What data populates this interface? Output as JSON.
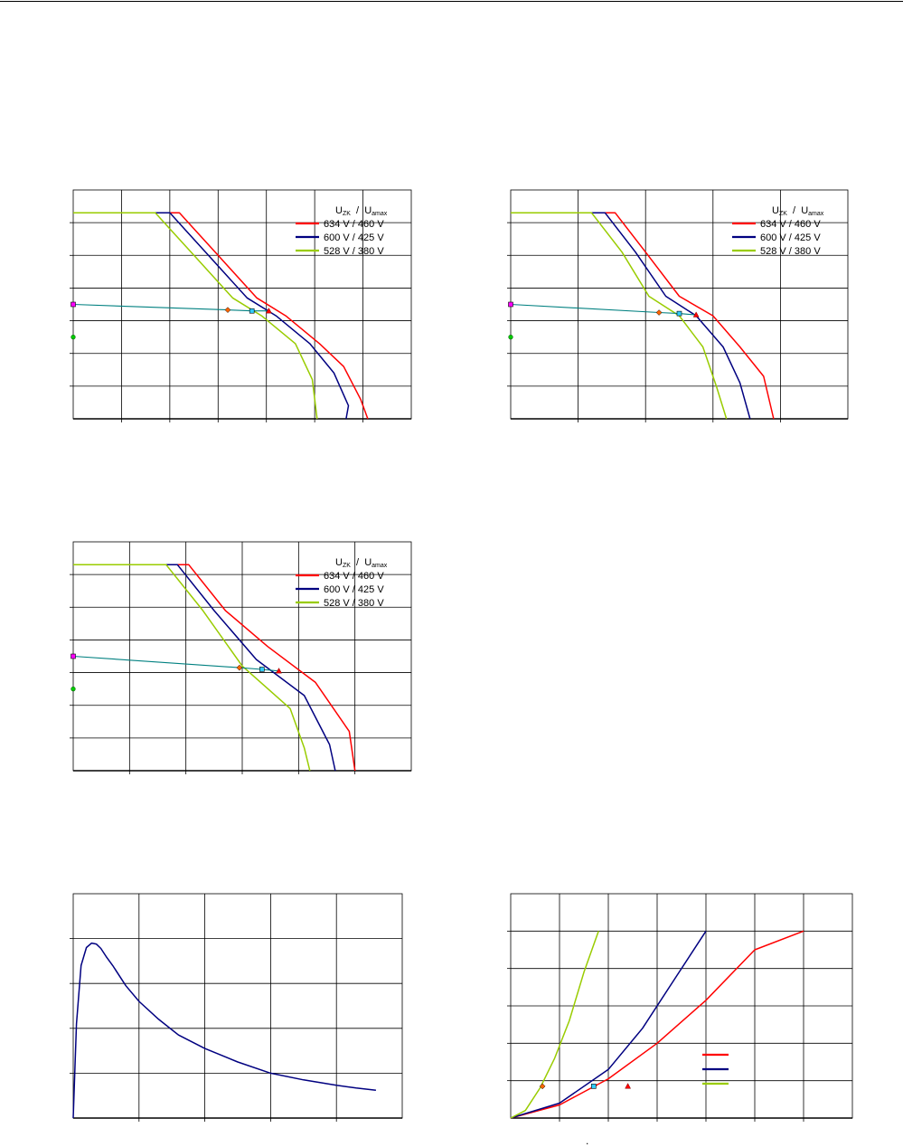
{
  "legend_header": {
    "u_zk": "U",
    "u_zk_sub": "ZK",
    "sep": "/",
    "u_amax": "U",
    "u_amax_sub": "amax"
  },
  "stray_mark": ".",
  "chart_data": [
    {
      "id": "chart-top-left",
      "type": "line",
      "xlim": [
        0,
        7
      ],
      "ylim": [
        0,
        7
      ],
      "x_grid_step": 1,
      "y_grid_step": 1,
      "legend_position": "top-right",
      "grid": true,
      "series": [
        {
          "name": "634 V / 460 V",
          "color": "#ff0000",
          "x": [
            0,
            2.2,
            3.0,
            3.8,
            4.4,
            5.1,
            5.6,
            5.95,
            6.1
          ],
          "y": [
            6.3,
            6.3,
            5.0,
            3.7,
            3.15,
            2.3,
            1.6,
            0.6,
            0
          ]
        },
        {
          "name": "600 V / 425 V",
          "color": "#000080",
          "x": [
            0,
            2.0,
            2.8,
            3.6,
            4.2,
            4.9,
            5.4,
            5.7,
            5.65
          ],
          "y": [
            6.3,
            6.3,
            5.0,
            3.7,
            3.15,
            2.3,
            1.4,
            0.4,
            0
          ]
        },
        {
          "name": "528 V / 380 V",
          "color": "#99cc00",
          "x": [
            0,
            1.7,
            2.5,
            3.3,
            3.9,
            4.6,
            4.95,
            5.05
          ],
          "y": [
            6.3,
            6.3,
            5.0,
            3.7,
            3.15,
            2.3,
            1.2,
            0
          ]
        },
        {
          "name": "",
          "color": "#008080",
          "x": [
            0,
            3.2,
            3.7,
            4.05
          ],
          "y": [
            3.5,
            3.33,
            3.3,
            3.3
          ]
        }
      ],
      "markers": [
        {
          "shape": "square",
          "color": "#ff00ff",
          "x": 0,
          "y": 3.5
        },
        {
          "shape": "circle",
          "color": "#00cc00",
          "x": 0,
          "y": 2.5
        },
        {
          "shape": "diamond",
          "color": "#ff6600",
          "x": 3.2,
          "y": 3.33
        },
        {
          "shape": "square",
          "color": "#33ccff",
          "x": 3.7,
          "y": 3.3
        },
        {
          "shape": "triangle",
          "color": "#ff0000",
          "x": 4.05,
          "y": 3.3
        }
      ]
    },
    {
      "id": "chart-top-right",
      "type": "line",
      "xlim": [
        0,
        5
      ],
      "ylim": [
        0,
        7
      ],
      "x_grid_step": 1,
      "y_grid_step": 1,
      "legend_position": "top-right",
      "grid": true,
      "series": [
        {
          "name": "634 V / 460 V",
          "color": "#ff0000",
          "x": [
            0,
            1.55,
            2.0,
            2.5,
            3.0,
            3.4,
            3.75,
            3.9
          ],
          "y": [
            6.3,
            6.3,
            5.1,
            3.75,
            3.15,
            2.2,
            1.3,
            0
          ]
        },
        {
          "name": "600 V / 425 V",
          "color": "#000080",
          "x": [
            0,
            1.4,
            1.85,
            2.3,
            2.75,
            3.15,
            3.4,
            3.55
          ],
          "y": [
            6.3,
            6.3,
            5.1,
            3.75,
            3.15,
            2.2,
            1.1,
            0
          ]
        },
        {
          "name": "528 V / 380 V",
          "color": "#99cc00",
          "x": [
            0,
            1.2,
            1.65,
            2.05,
            2.5,
            2.85,
            3.05,
            3.2
          ],
          "y": [
            6.3,
            6.3,
            5.1,
            3.75,
            3.15,
            2.2,
            1.0,
            0
          ]
        },
        {
          "name": "",
          "color": "#008080",
          "x": [
            0,
            2.2,
            2.5,
            2.75
          ],
          "y": [
            3.5,
            3.25,
            3.22,
            3.18
          ]
        }
      ],
      "markers": [
        {
          "shape": "square",
          "color": "#ff00ff",
          "x": 0,
          "y": 3.5
        },
        {
          "shape": "circle",
          "color": "#00cc00",
          "x": 0,
          "y": 2.5
        },
        {
          "shape": "diamond",
          "color": "#ff6600",
          "x": 2.2,
          "y": 3.25
        },
        {
          "shape": "square",
          "color": "#33ccff",
          "x": 2.5,
          "y": 3.22
        },
        {
          "shape": "triangle",
          "color": "#ff0000",
          "x": 2.75,
          "y": 3.18
        }
      ]
    },
    {
      "id": "chart-middle-left",
      "type": "line",
      "xlim": [
        0,
        6
      ],
      "ylim": [
        0,
        7
      ],
      "x_grid_step": 1,
      "y_grid_step": 1,
      "legend_position": "top-right",
      "grid": true,
      "series": [
        {
          "name": "634 V / 460 V",
          "color": "#ff0000",
          "x": [
            0,
            2.05,
            2.7,
            3.45,
            4.3,
            4.9,
            5.0
          ],
          "y": [
            6.3,
            6.3,
            4.9,
            3.8,
            2.7,
            1.2,
            0
          ]
        },
        {
          "name": "600 V / 425 V",
          "color": "#000080",
          "x": [
            0,
            1.85,
            2.5,
            3.25,
            4.1,
            4.55,
            4.65
          ],
          "y": [
            6.3,
            6.3,
            4.9,
            3.4,
            2.3,
            0.8,
            0
          ]
        },
        {
          "name": "528 V / 380 V",
          "color": "#99cc00",
          "x": [
            0,
            1.65,
            2.3,
            3.0,
            3.85,
            4.1,
            4.2
          ],
          "y": [
            6.3,
            6.3,
            4.9,
            3.2,
            1.9,
            0.7,
            0
          ]
        },
        {
          "name": "",
          "color": "#008080",
          "x": [
            0,
            2.95,
            3.35,
            3.65
          ],
          "y": [
            3.5,
            3.15,
            3.1,
            3.05
          ]
        }
      ],
      "markers": [
        {
          "shape": "square",
          "color": "#ff00ff",
          "x": 0,
          "y": 3.5
        },
        {
          "shape": "circle",
          "color": "#00cc00",
          "x": 0,
          "y": 2.5
        },
        {
          "shape": "diamond",
          "color": "#ff6600",
          "x": 2.95,
          "y": 3.15
        },
        {
          "shape": "square",
          "color": "#33ccff",
          "x": 3.35,
          "y": 3.1
        },
        {
          "shape": "triangle",
          "color": "#ff0000",
          "x": 3.65,
          "y": 3.05
        }
      ]
    },
    {
      "id": "chart-bottom-left",
      "type": "line",
      "xlim": [
        0,
        5
      ],
      "ylim": [
        0,
        5
      ],
      "x_grid_step": 1,
      "y_grid_step": 1,
      "legend_position": "none",
      "grid": true,
      "series": [
        {
          "name": "",
          "color": "#000080",
          "x": [
            0,
            0.05,
            0.12,
            0.2,
            0.28,
            0.35,
            0.42,
            0.5,
            0.6,
            0.8,
            1.0,
            1.3,
            1.6,
            2.0,
            2.5,
            3.0,
            3.5,
            4.0,
            4.3,
            4.6
          ],
          "y": [
            0,
            2.1,
            3.4,
            3.8,
            3.9,
            3.88,
            3.78,
            3.6,
            3.4,
            2.95,
            2.6,
            2.2,
            1.85,
            1.55,
            1.25,
            1.0,
            0.85,
            0.73,
            0.67,
            0.62
          ]
        }
      ],
      "markers": []
    },
    {
      "id": "chart-bottom-right",
      "type": "line",
      "xlim": [
        0,
        7
      ],
      "ylim": [
        0,
        6
      ],
      "x_grid_step": 1,
      "y_grid_step": 1,
      "legend_position": "middle-right",
      "grid": true,
      "series": [
        {
          "name": "",
          "color": "#ff0000",
          "x": [
            0,
            1.0,
            2.0,
            3.0,
            4.0,
            5.0,
            6.0
          ],
          "y": [
            0,
            0.35,
            1.05,
            2.0,
            3.15,
            4.5,
            5.0
          ]
        },
        {
          "name": "",
          "color": "#000080",
          "x": [
            0,
            1.0,
            2.0,
            2.7,
            3.4,
            4.0
          ],
          "y": [
            0,
            0.4,
            1.3,
            2.4,
            3.8,
            5.0
          ]
        },
        {
          "name": "",
          "color": "#99cc00",
          "x": [
            0,
            0.3,
            0.6,
            0.9,
            1.2,
            1.5,
            1.8
          ],
          "y": [
            0,
            0.2,
            0.8,
            1.6,
            2.6,
            3.9,
            5.0
          ]
        }
      ],
      "legend_swatches": [
        "#ff0000",
        "#000080",
        "#99cc00"
      ],
      "markers": [
        {
          "shape": "diamond",
          "color": "#ff6600",
          "x": 0.65,
          "y": 0.85
        },
        {
          "shape": "square",
          "color": "#33ccff",
          "x": 1.7,
          "y": 0.85
        },
        {
          "shape": "triangle",
          "color": "#ff0000",
          "x": 2.4,
          "y": 0.85
        }
      ]
    }
  ]
}
